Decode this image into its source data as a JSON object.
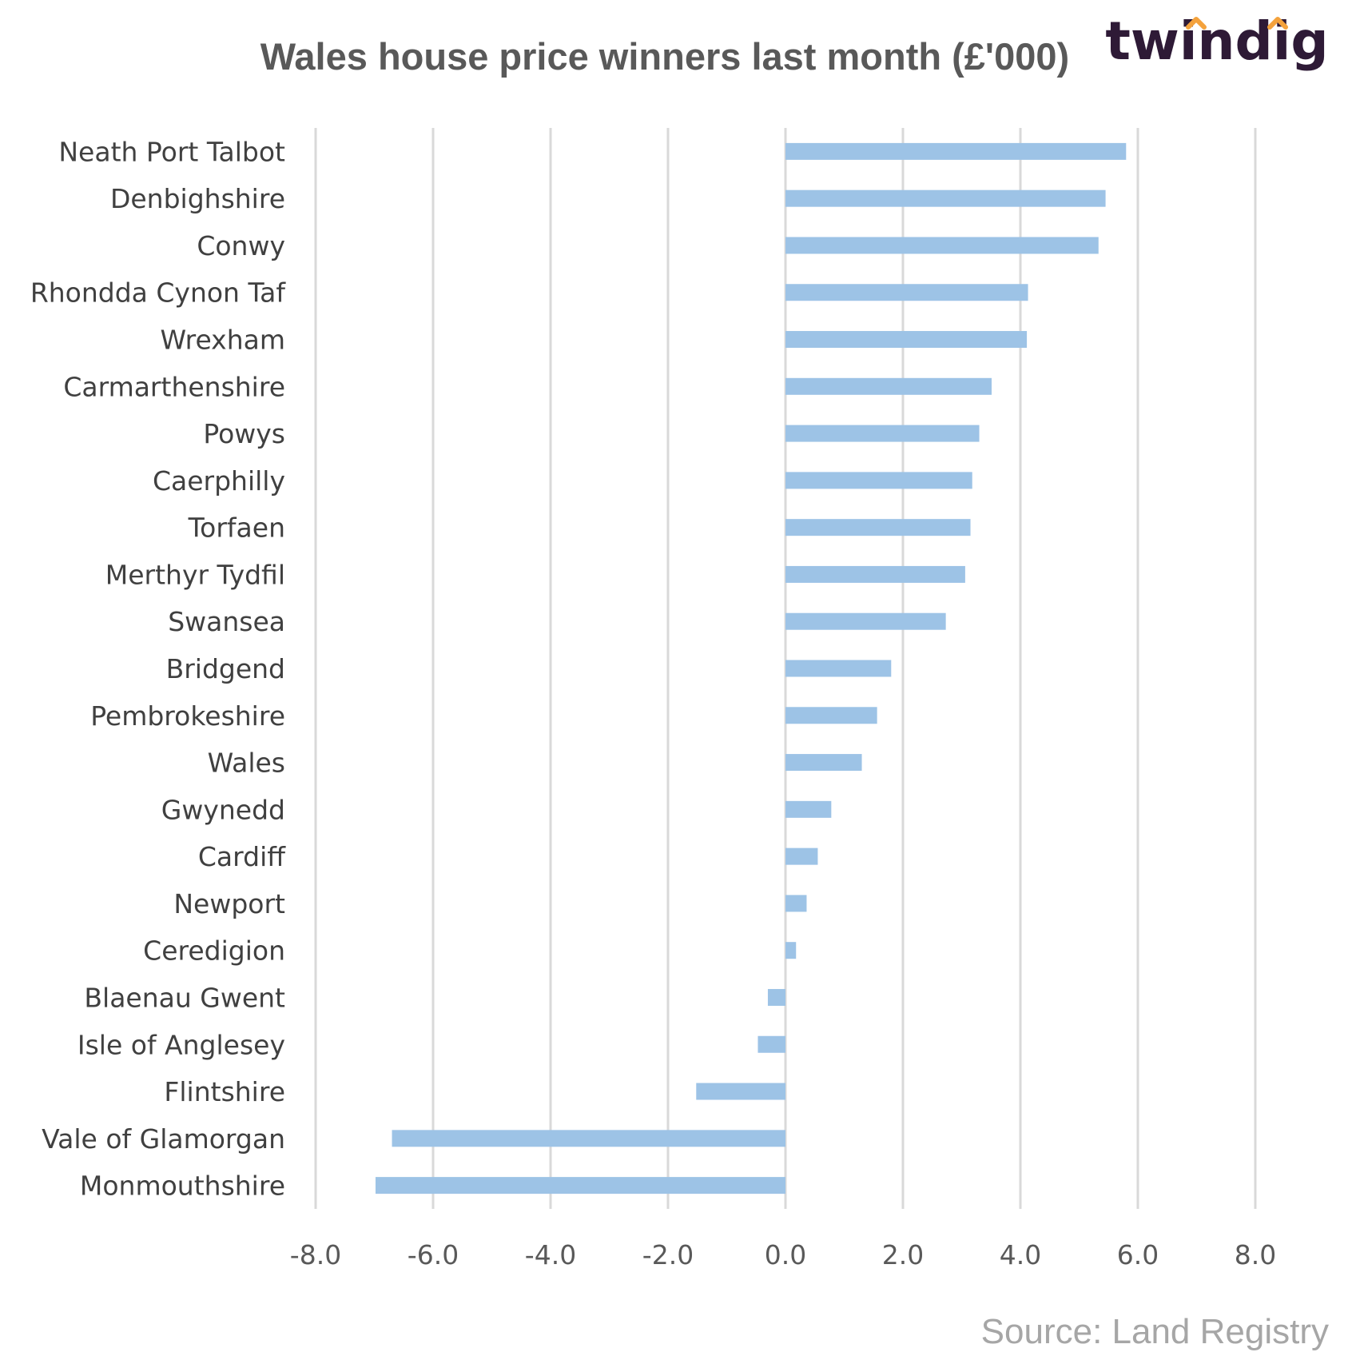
{
  "chart_data": {
    "type": "bar",
    "orientation": "horizontal",
    "title": "Wales house price winners last month (£'000)",
    "xlabel": "",
    "ylabel": "",
    "xlim": [
      -8.0,
      8.0
    ],
    "x_ticks": [
      "-8.0",
      "-6.0",
      "-4.0",
      "-2.0",
      "0.0",
      "2.0",
      "4.0",
      "6.0",
      "8.0"
    ],
    "grid": "vertical",
    "legend": "none",
    "categories": [
      "Neath Port Talbot",
      "Denbighshire",
      "Conwy",
      "Rhondda Cynon Taf",
      "Wrexham",
      "Carmarthenshire",
      "Powys",
      "Caerphilly",
      "Torfaen",
      "Merthyr Tydfil",
      "Swansea",
      "Bridgend",
      "Pembrokeshire",
      "Wales",
      "Gwynedd",
      "Cardiff",
      "Newport",
      "Ceredigion",
      "Blaenau Gwent",
      "Isle of Anglesey",
      "Flintshire",
      "Vale of Glamorgan",
      "Monmouthshire"
    ],
    "values": [
      5.8,
      5.45,
      5.33,
      4.13,
      4.11,
      3.51,
      3.3,
      3.18,
      3.15,
      3.06,
      2.73,
      1.8,
      1.56,
      1.3,
      0.78,
      0.55,
      0.36,
      0.18,
      -0.3,
      -0.47,
      -1.52,
      -6.7,
      -6.98
    ],
    "colors": {
      "bar": "#9dc3e6",
      "grid": "#d9d9d9"
    }
  },
  "source": "Source: Land Registry",
  "logo": {
    "text": "twindig",
    "accent": "#f4a23c"
  }
}
